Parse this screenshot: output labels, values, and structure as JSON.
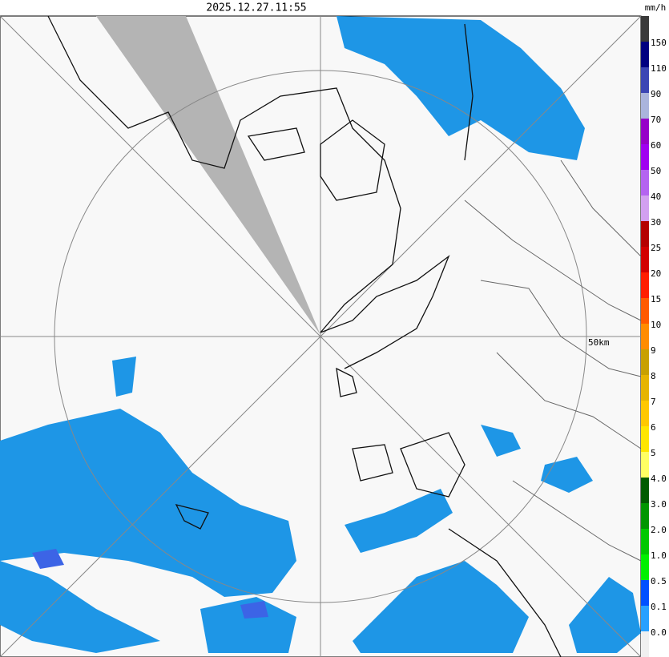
{
  "header": {
    "timestamp": "2025.12.27.11:55"
  },
  "map": {
    "range_label": "50km"
  },
  "legend": {
    "unit": "mm/h",
    "labels": [
      "150",
      "110",
      "90",
      "70",
      "60",
      "50",
      "40",
      "30",
      "25",
      "20",
      "15",
      "10",
      "9",
      "8",
      "7",
      "6",
      "5",
      "4.0",
      "3.0",
      "2.0",
      "1.0",
      "0.5",
      "0.1",
      "0.0"
    ],
    "colors": [
      "#3a3a3a",
      "#000080",
      "#3c46b4",
      "#aab4dc",
      "#9600c8",
      "#a000f0",
      "#b464f0",
      "#d2a0f0",
      "#b40000",
      "#d20000",
      "#ff1e00",
      "#ff5a00",
      "#ff8c00",
      "#c8a000",
      "#e6b400",
      "#ffc800",
      "#ffe600",
      "#ffff64",
      "#005a00",
      "#009600",
      "#00c800",
      "#00f000",
      "#0050ff",
      "#28a0ff",
      "#f0f0f0"
    ]
  }
}
